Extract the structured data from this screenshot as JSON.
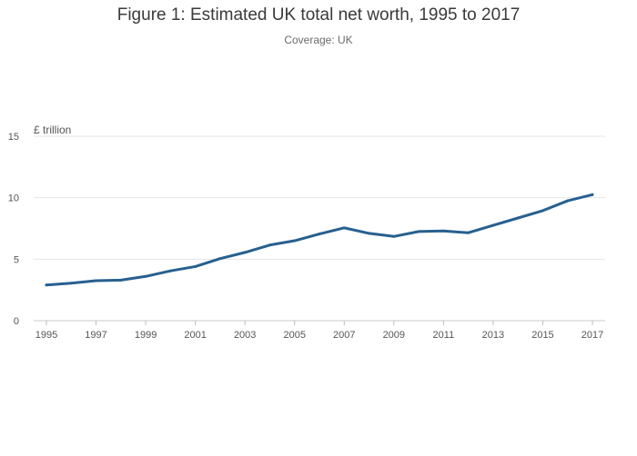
{
  "chart_data": {
    "type": "line",
    "title": "Figure 1: Estimated UK total net worth, 1995 to 2017",
    "subtitle": "Coverage: UK",
    "ylabel": "£ trillion",
    "xlabel": "",
    "ylim": [
      0,
      15
    ],
    "xlim": [
      1995,
      2017
    ],
    "yticks": [
      0,
      5,
      10,
      15
    ],
    "xticks": [
      1995,
      1997,
      1999,
      2001,
      2003,
      2005,
      2007,
      2009,
      2011,
      2013,
      2015,
      2017
    ],
    "grid": "horizontal",
    "series": [
      {
        "color": "#27608f",
        "x": [
          1995,
          1996,
          1997,
          1998,
          1999,
          2000,
          2001,
          2002,
          2003,
          2004,
          2005,
          2006,
          2007,
          2008,
          2009,
          2010,
          2011,
          2012,
          2013,
          2014,
          2015,
          2016,
          2017
        ],
        "values": [
          2.9,
          3.05,
          3.25,
          3.3,
          3.6,
          4.05,
          4.4,
          5.05,
          5.55,
          6.15,
          6.5,
          7.05,
          7.55,
          7.1,
          6.85,
          7.25,
          7.3,
          7.15,
          7.75,
          8.35,
          8.95,
          9.75,
          10.25
        ]
      }
    ]
  }
}
